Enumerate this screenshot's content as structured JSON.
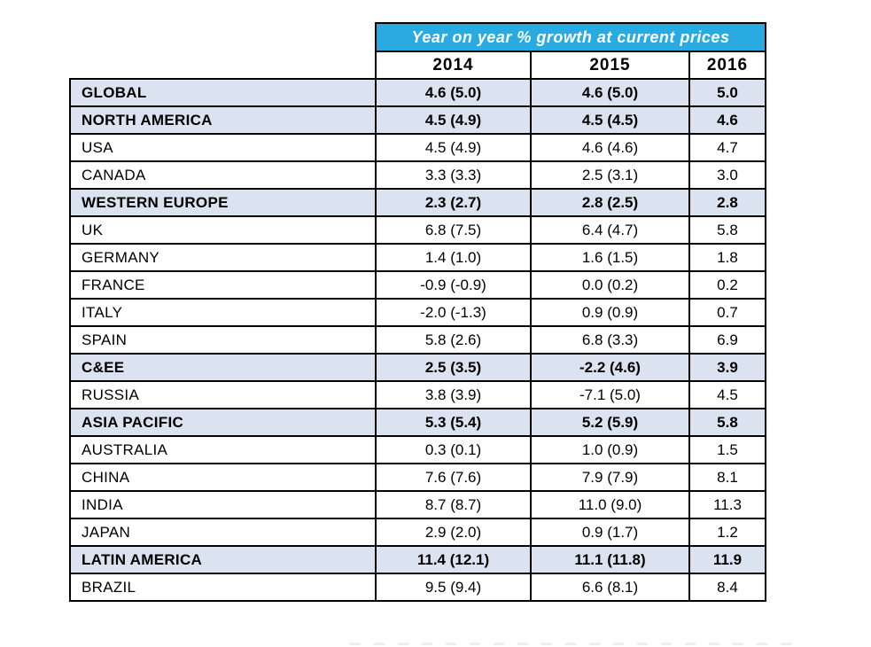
{
  "colors": {
    "band_background": "#29ABE2",
    "band_text": "#FFFFFF",
    "group_row_background": "#DAE3EF",
    "border": "#000000",
    "body_text": "#000000"
  },
  "chart_data": {
    "type": "table",
    "title": "Year on year % growth at current prices",
    "columns": [
      "2014",
      "2015",
      "2016"
    ],
    "rows": [
      {
        "label": "GLOBAL",
        "group": true,
        "values": [
          "4.6 (5.0)",
          "4.6 (5.0)",
          "5.0"
        ]
      },
      {
        "label": "NORTH AMERICA",
        "group": true,
        "values": [
          "4.5 (4.9)",
          "4.5 (4.5)",
          "4.6"
        ]
      },
      {
        "label": "USA",
        "group": false,
        "values": [
          "4.5 (4.9)",
          "4.6 (4.6)",
          "4.7"
        ]
      },
      {
        "label": "CANADA",
        "group": false,
        "values": [
          "3.3 (3.3)",
          "2.5 (3.1)",
          "3.0"
        ]
      },
      {
        "label": "WESTERN EUROPE",
        "group": true,
        "values": [
          "2.3 (2.7)",
          "2.8 (2.5)",
          "2.8"
        ]
      },
      {
        "label": "UK",
        "group": false,
        "values": [
          "6.8 (7.5)",
          "6.4 (4.7)",
          "5.8"
        ]
      },
      {
        "label": "GERMANY",
        "group": false,
        "values": [
          "1.4 (1.0)",
          "1.6 (1.5)",
          "1.8"
        ]
      },
      {
        "label": "FRANCE",
        "group": false,
        "values": [
          "-0.9 (-0.9)",
          "0.0 (0.2)",
          "0.2"
        ]
      },
      {
        "label": "ITALY",
        "group": false,
        "values": [
          "-2.0 (-1.3)",
          "0.9 (0.9)",
          "0.7"
        ]
      },
      {
        "label": "SPAIN",
        "group": false,
        "values": [
          "5.8 (2.6)",
          "6.8 (3.3)",
          "6.9"
        ]
      },
      {
        "label": "C&EE",
        "group": true,
        "values": [
          "2.5 (3.5)",
          "-2.2 (4.6)",
          "3.9"
        ]
      },
      {
        "label": "RUSSIA",
        "group": false,
        "values": [
          "3.8 (3.9)",
          "-7.1 (5.0)",
          "4.5"
        ]
      },
      {
        "label": "ASIA PACIFIC",
        "group": true,
        "values": [
          "5.3 (5.4)",
          "5.2 (5.9)",
          "5.8"
        ]
      },
      {
        "label": "AUSTRALIA",
        "group": false,
        "values": [
          "0.3 (0.1)",
          "1.0 (0.9)",
          "1.5"
        ]
      },
      {
        "label": "CHINA",
        "group": false,
        "values": [
          "7.6 (7.6)",
          "7.9 (7.9)",
          "8.1"
        ]
      },
      {
        "label": "INDIA",
        "group": false,
        "values": [
          "8.7 (8.7)",
          "11.0 (9.0)",
          "11.3"
        ]
      },
      {
        "label": "JAPAN",
        "group": false,
        "values": [
          "2.9 (2.0)",
          "0.9 (1.7)",
          "1.2"
        ]
      },
      {
        "label": "LATIN AMERICA",
        "group": true,
        "values": [
          "11.4 (12.1)",
          "11.1 (11.8)",
          "11.9"
        ]
      },
      {
        "label": "BRAZIL",
        "group": false,
        "values": [
          "9.5 (9.4)",
          "6.6 (8.1)",
          "8.4"
        ]
      }
    ]
  }
}
